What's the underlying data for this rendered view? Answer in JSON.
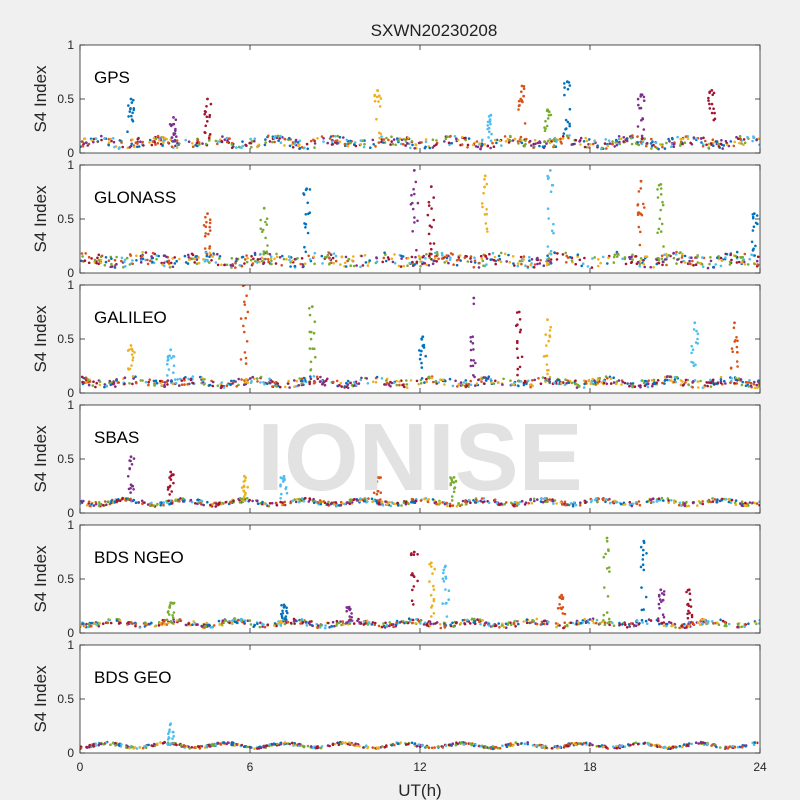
{
  "chart_data": {
    "type": "scatter",
    "title": "SXWN20230208",
    "xlabel": "UT(h)",
    "ylabel": "S4 Index",
    "xlim": [
      0,
      24
    ],
    "ylim": [
      0,
      1
    ],
    "xticks": [
      "0",
      "6",
      "12",
      "18",
      "24"
    ],
    "yticks": [
      "0",
      "0.5",
      "1"
    ],
    "grid": false,
    "watermark": "IONISE",
    "panels": [
      {
        "label": "GPS",
        "baseline": 0.1,
        "noise": 0.045,
        "spikes": [
          [
            1.8,
            0.5
          ],
          [
            3.3,
            0.33
          ],
          [
            4.5,
            0.5
          ],
          [
            10.5,
            0.58
          ],
          [
            14.5,
            0.35
          ],
          [
            15.6,
            0.62
          ],
          [
            16.5,
            0.4
          ],
          [
            17.2,
            0.66
          ],
          [
            19.8,
            0.54
          ],
          [
            22.3,
            0.58
          ]
        ]
      },
      {
        "label": "GLONASS",
        "baseline": 0.12,
        "noise": 0.055,
        "spikes": [
          [
            4.5,
            0.55
          ],
          [
            6.5,
            0.6
          ],
          [
            8.0,
            0.78
          ],
          [
            11.8,
            0.95
          ],
          [
            12.4,
            0.8
          ],
          [
            14.3,
            0.9
          ],
          [
            16.6,
            0.95
          ],
          [
            19.8,
            0.85
          ],
          [
            20.5,
            0.82
          ],
          [
            23.8,
            0.55
          ]
        ]
      },
      {
        "label": "GALILEO",
        "baseline": 0.1,
        "noise": 0.035,
        "spikes": [
          [
            1.8,
            0.44
          ],
          [
            3.2,
            0.4
          ],
          [
            5.8,
            1.0
          ],
          [
            8.2,
            0.8
          ],
          [
            12.1,
            0.52
          ],
          [
            13.9,
            0.88
          ],
          [
            15.5,
            0.75
          ],
          [
            16.5,
            0.68
          ],
          [
            21.7,
            0.65
          ],
          [
            23.1,
            0.65
          ]
        ]
      },
      {
        "label": "SBAS",
        "baseline": 0.1,
        "noise": 0.02,
        "spikes": [
          [
            1.8,
            0.52
          ],
          [
            3.2,
            0.38
          ],
          [
            5.8,
            0.34
          ],
          [
            7.2,
            0.34
          ],
          [
            10.5,
            0.33
          ],
          [
            13.2,
            0.33
          ]
        ]
      },
      {
        "label": "BDS NGEO",
        "baseline": 0.09,
        "noise": 0.025,
        "spikes": [
          [
            3.2,
            0.28
          ],
          [
            7.2,
            0.26
          ],
          [
            9.5,
            0.24
          ],
          [
            11.8,
            0.75
          ],
          [
            12.4,
            0.65
          ],
          [
            12.9,
            0.62
          ],
          [
            17.0,
            0.35
          ],
          [
            18.6,
            0.88
          ],
          [
            19.9,
            0.85
          ],
          [
            20.5,
            0.4
          ],
          [
            21.5,
            0.4
          ]
        ]
      },
      {
        "label": "BDS GEO",
        "baseline": 0.07,
        "noise": 0.012,
        "spikes": [
          [
            3.2,
            0.27
          ]
        ]
      }
    ],
    "colors": [
      "#0072bd",
      "#d95319",
      "#edb120",
      "#7e2f8e",
      "#77ac30",
      "#4dbeee",
      "#a2142f"
    ]
  }
}
